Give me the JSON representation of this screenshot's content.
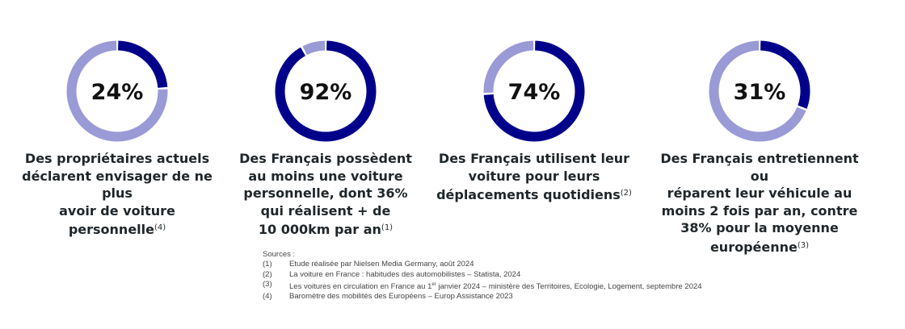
{
  "colors": {
    "filled": "#00008b",
    "remaining": "#9a9ad6"
  },
  "stats": [
    {
      "value": 24,
      "label": "24%",
      "lines": [
        "Des propriétaires actuels",
        "déclarent envisager de ne plus",
        "avoir de voiture personnelle"
      ],
      "ref": "(4)"
    },
    {
      "value": 92,
      "label": "92%",
      "lines": [
        "Des Français possèdent",
        "au moins une voiture",
        "personnelle, dont 36%",
        "qui réalisent + de",
        "10 000km par an"
      ],
      "ref": "(1)"
    },
    {
      "value": 74,
      "label": "74%",
      "lines": [
        "Des Français utilisent leur",
        "voiture pour leurs",
        "déplacements quotidiens"
      ],
      "ref": "(2)"
    },
    {
      "value": 31,
      "label": "31%",
      "lines": [
        "Des Français entretiennent ou",
        "réparent leur véhicule au",
        "moins 2 fois par an, contre",
        "38% pour la moyenne",
        "européenne"
      ],
      "ref": "(3)"
    }
  ],
  "sources": {
    "title": "Sources :",
    "items": [
      {
        "num": "(1)",
        "text": "Etude réalisée par Nielsen Media Germany, août 2024"
      },
      {
        "num": "(2)",
        "text": "La voiture en France : habitudes des automobilistes – Statista, 2024"
      },
      {
        "num": "(3)",
        "text_before": "Les voitures en circulation en France au 1",
        "sup": "er",
        "text_after": " janvier 2024 – ministère des Territoires, Ecologie, Logement, septembre 2024"
      },
      {
        "num": "(4)",
        "text": "Baromètre des mobilités des Européens – Europ Assistance 2023"
      }
    ]
  }
}
